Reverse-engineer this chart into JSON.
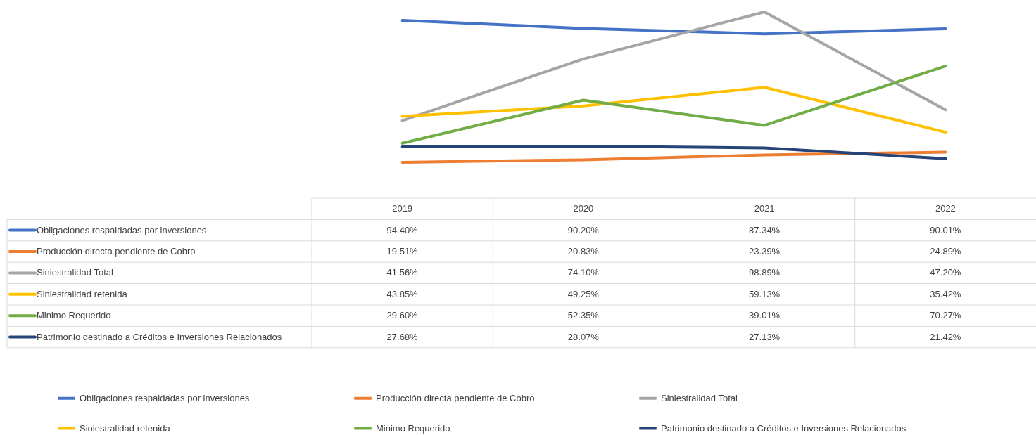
{
  "chart_data": {
    "type": "line",
    "categories": [
      "2019",
      "2020",
      "2021",
      "2022"
    ],
    "series": [
      {
        "name": "Obligaciones respaldadas por inversiones",
        "color": "#4472c4",
        "values": [
          94.4,
          90.2,
          87.34,
          90.01
        ],
        "value_labels": [
          "94.40%",
          "90.20%",
          "87.34%",
          "90.01%"
        ]
      },
      {
        "name": "Producción directa pendiente de Cobro",
        "color": "#ed7d31",
        "values": [
          19.51,
          20.83,
          23.39,
          24.89
        ],
        "value_labels": [
          "19.51%",
          "20.83%",
          "23.39%",
          "24.89%"
        ]
      },
      {
        "name": "Siniestralidad Total",
        "color": "#a5a5a5",
        "values": [
          41.56,
          74.1,
          98.89,
          47.2
        ],
        "value_labels": [
          "41.56%",
          "74.10%",
          "98.89%",
          "47.20%"
        ]
      },
      {
        "name": "Siniestralidad retenida",
        "color": "#ffc000",
        "values": [
          43.85,
          49.25,
          59.13,
          35.42
        ],
        "value_labels": [
          "43.85%",
          "49.25%",
          "59.13%",
          "35.42%"
        ]
      },
      {
        "name": "Minimo Requerido",
        "color": "#70ad47",
        "values": [
          29.6,
          52.35,
          39.01,
          70.27
        ],
        "value_labels": [
          "29.60%",
          "52.35%",
          "39.01%",
          "70.27%"
        ]
      },
      {
        "name": "Patrimonio destinado a Créditos e Inversiones Relacionados",
        "color": "#264478",
        "values": [
          27.68,
          28.07,
          27.13,
          21.42
        ],
        "value_labels": [
          "27.68%",
          "28.07%",
          "27.13%",
          "21.42%"
        ]
      }
    ],
    "legend": "bottom",
    "marker": "none",
    "line_style": "solid"
  }
}
